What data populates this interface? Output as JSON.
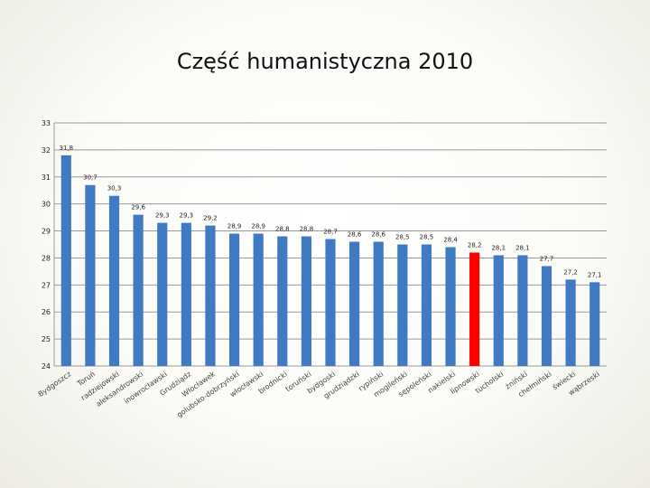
{
  "chart_data": {
    "type": "bar",
    "title": "Część humanistyczna 2010",
    "xlabel": "",
    "ylabel": "",
    "ylim": [
      24,
      33
    ],
    "yticks": [
      24,
      25,
      26,
      27,
      28,
      29,
      30,
      31,
      32,
      33
    ],
    "grid": true,
    "legend": "none",
    "bar_color": "#3f7ac2",
    "highlight_color": "#ff0000",
    "highlight_index": 17,
    "categories": [
      "Bydgoszcz",
      "Toruń",
      "radziejowski",
      "aleksandrowski",
      "inowrocławski",
      "Grudziądz",
      "Włocławek",
      "golubsko-dobrzyński",
      "włocławski",
      "brodnicki",
      "toruński",
      "bydgoski",
      "grudziądzki",
      "rypiński",
      "mogileński",
      "sępoleński",
      "nakielski",
      "lipnowski",
      "tucholski",
      "żniński",
      "chełmiński",
      "świecki",
      "wąbrzeski"
    ],
    "values": [
      31.8,
      30.7,
      30.3,
      29.6,
      29.3,
      29.3,
      29.2,
      28.9,
      28.9,
      28.8,
      28.8,
      28.7,
      28.6,
      28.6,
      28.5,
      28.5,
      28.4,
      28.2,
      28.1,
      28.1,
      27.7,
      27.2,
      27.1
    ],
    "data_labels": [
      "31,8",
      "30,7",
      "30,3",
      "29,6",
      "29,3",
      "29,3",
      "29,2",
      "28,9",
      "28,9",
      "28,8",
      "28,8",
      "28,7",
      "28,6",
      "28,6",
      "28,5",
      "28,5",
      "28,4",
      "28,2",
      "28,1",
      "28,1",
      "27,7",
      "27,2",
      "27,1"
    ]
  }
}
